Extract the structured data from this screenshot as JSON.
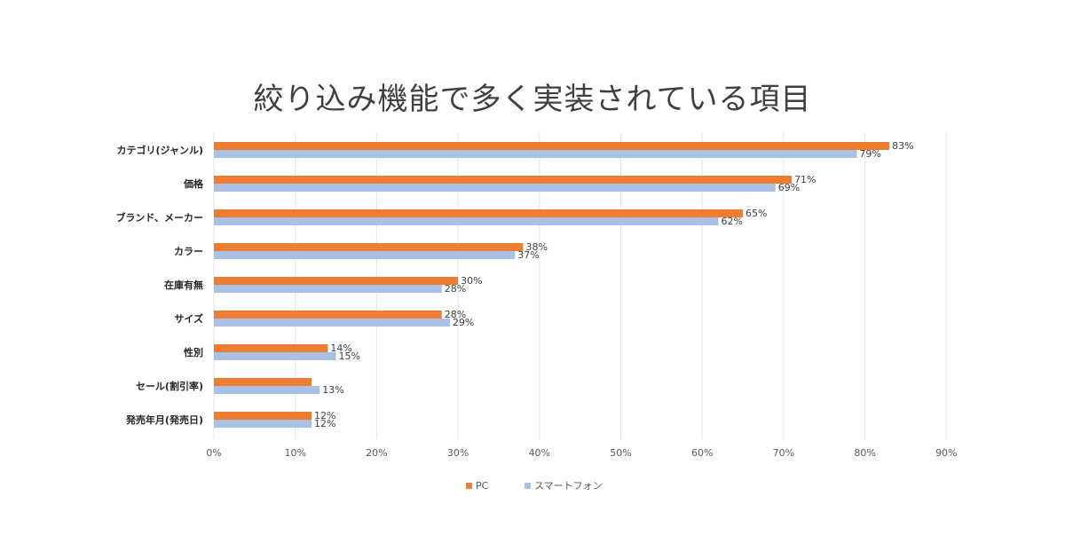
{
  "chart_data": {
    "type": "bar",
    "orientation": "horizontal",
    "title": "絞り込み機能で多く実装されている項目",
    "categories": [
      "カテゴリ(ジャンル)",
      "価格",
      "ブランド、メーカー",
      "カラー",
      "在庫有無",
      "サイズ",
      "性別",
      "セール(割引率)",
      "発売年月(発売日)"
    ],
    "series": [
      {
        "name": "PC",
        "color": "#ED7D31",
        "values": [
          83,
          71,
          65,
          38,
          30,
          28,
          14,
          12,
          12
        ],
        "labels": [
          "83%",
          "71%",
          "65%",
          "38%",
          "30%",
          "28%",
          "14%",
          null,
          "12%"
        ]
      },
      {
        "name": "スマートフォン",
        "color": "#A9C1E7",
        "values": [
          79,
          69,
          62,
          37,
          28,
          29,
          15,
          13,
          12
        ],
        "labels": [
          "79%",
          "69%",
          "62%",
          "37%",
          "28%",
          "29%",
          "15%",
          "13%",
          "12%"
        ]
      }
    ],
    "xlim": [
      0,
      90
    ],
    "xticks": [
      "0%",
      "10%",
      "20%",
      "30%",
      "40%",
      "50%",
      "60%",
      "70%",
      "80%",
      "90%"
    ],
    "xlabel": "",
    "ylabel": "",
    "grid": "vertical",
    "legend": "bottom"
  }
}
